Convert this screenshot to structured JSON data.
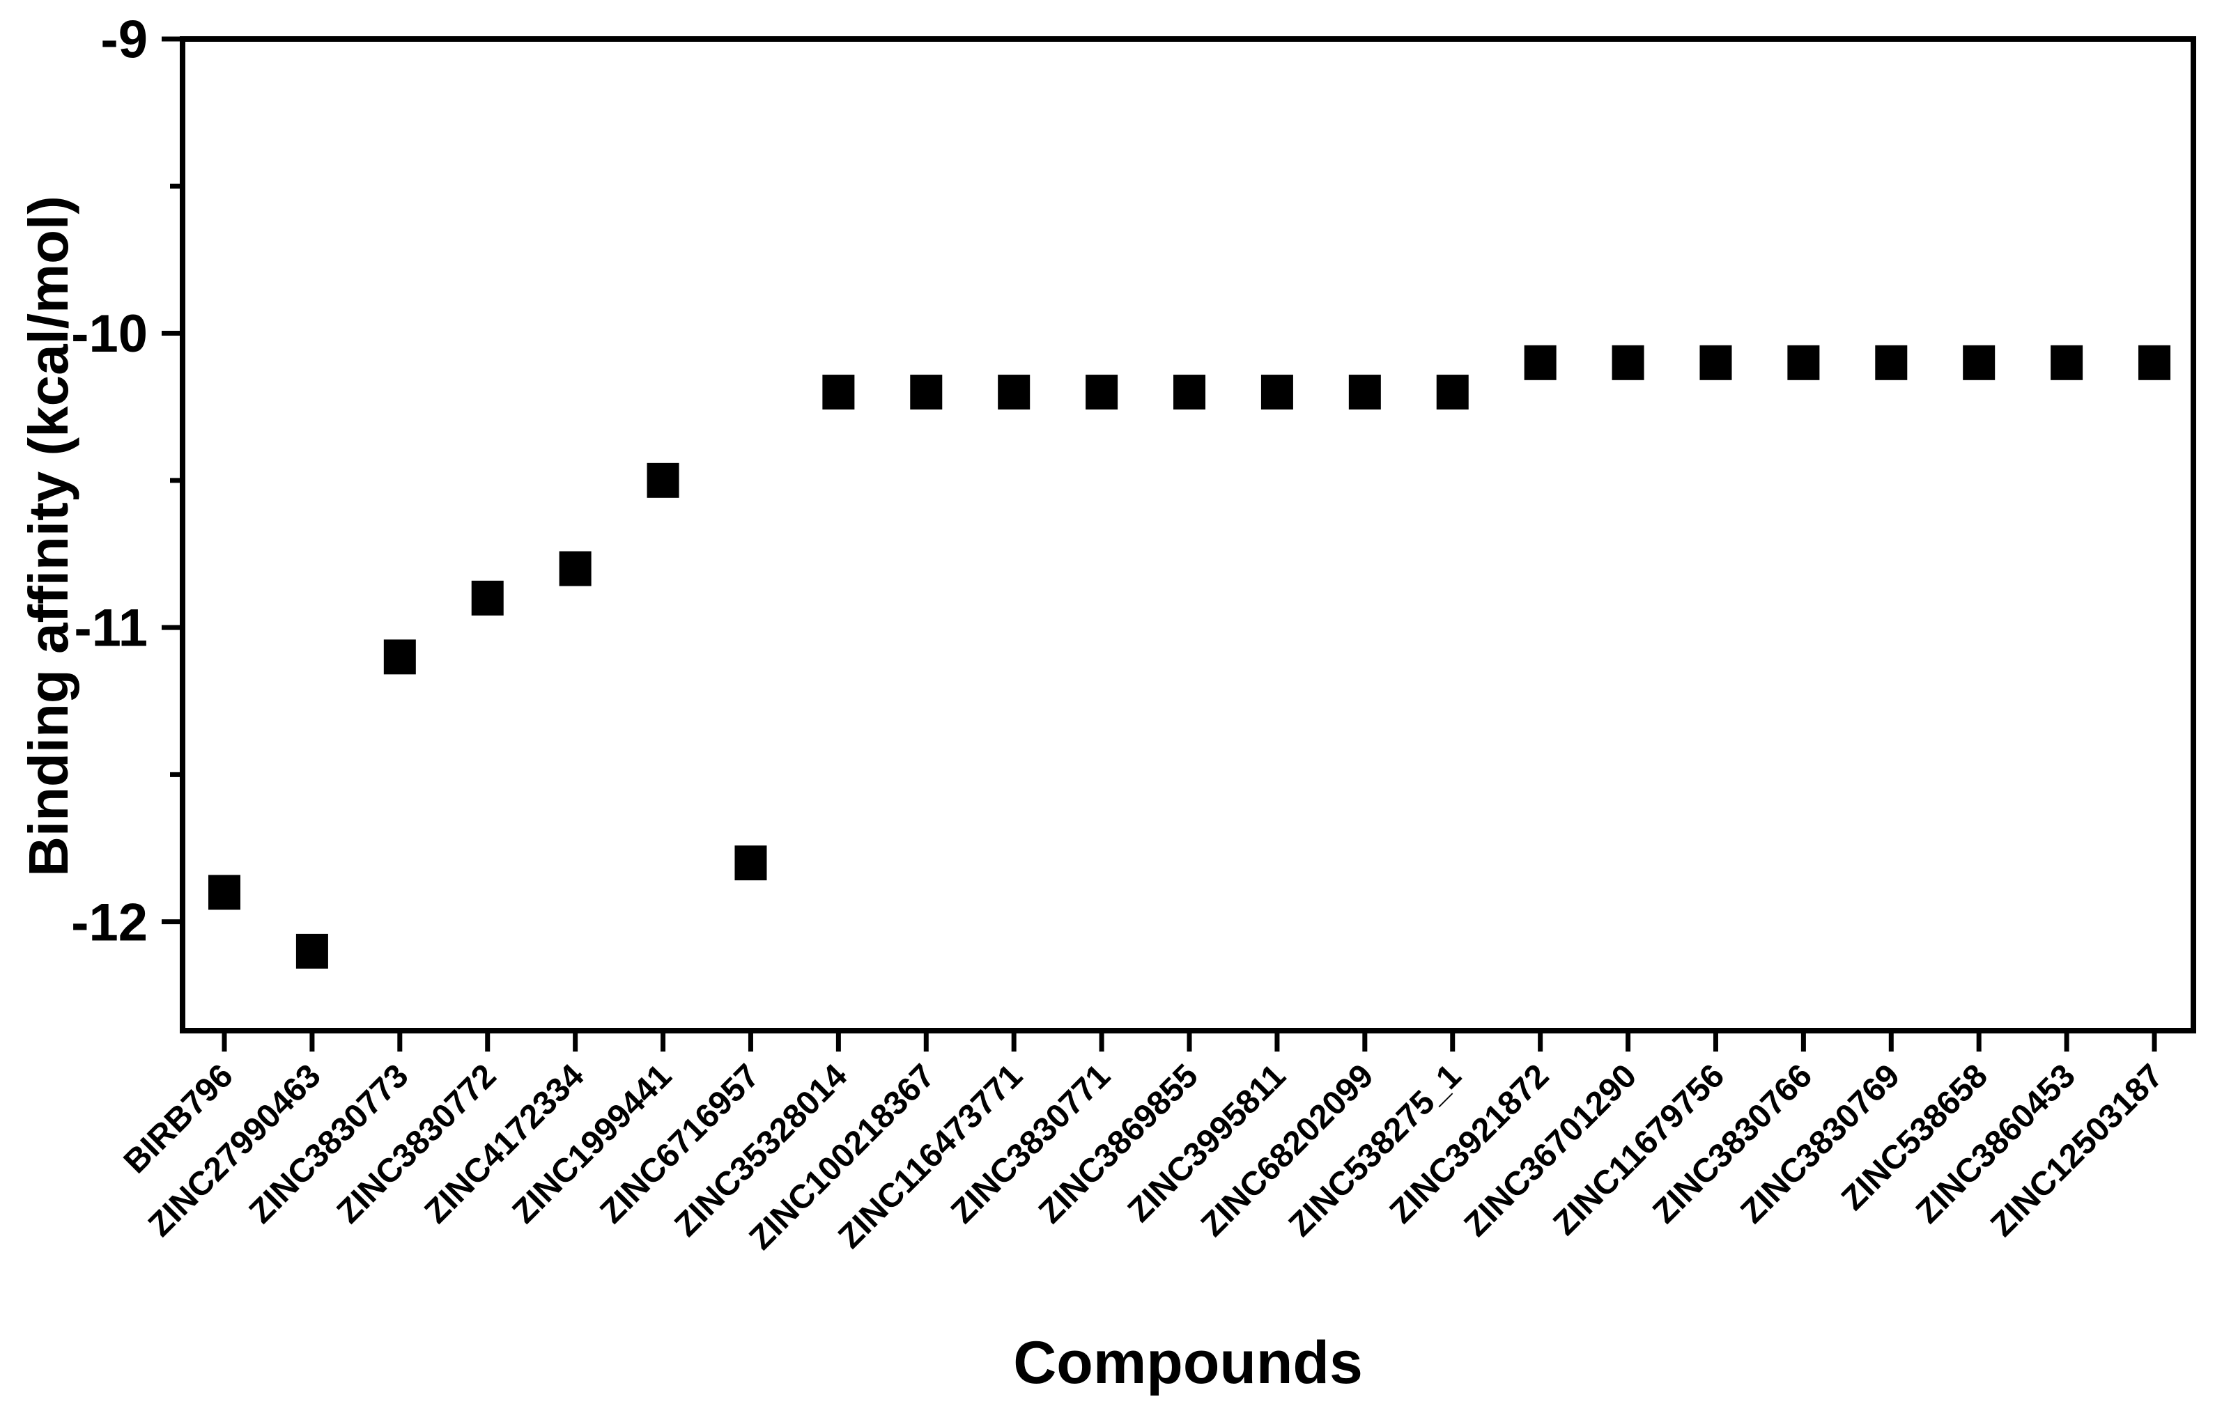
{
  "figure": {
    "background": "#ffffff",
    "ink_color": "#000000"
  },
  "chart_data": {
    "type": "scatter",
    "title": "",
    "xlabel": "Compounds",
    "ylabel": "Binding affinity (kcal/mol)",
    "categories": [
      "BIRB796",
      "ZINC27990463",
      "ZINC3830773",
      "ZINC3830772",
      "ZINC4172334",
      "ZINC1999441",
      "ZINC6716957",
      "ZINC35328014",
      "ZINC100218367",
      "ZINC116473771",
      "ZINC3830771",
      "ZINC3869855",
      "ZINC3995811",
      "ZINC68202099",
      "ZINC538275_1",
      "ZINC3921872",
      "ZINC36701290",
      "ZINC11679756",
      "ZINC3830766",
      "ZINC3830769",
      "ZINC538658",
      "ZINC3860453",
      "ZINC12503187"
    ],
    "values": [
      -11.9,
      -12.1,
      -11.1,
      -10.9,
      -10.8,
      -10.5,
      -11.8,
      -10.2,
      -10.2,
      -10.2,
      -10.2,
      -10.2,
      -10.2,
      -10.2,
      -10.2,
      -10.1,
      -10.1,
      -10.1,
      -10.1,
      -10.1,
      -10.1,
      -10.1,
      -10.1
    ],
    "ylim": [
      -12.37,
      -9
    ],
    "yticks_major": [
      -9,
      -10,
      -11,
      -12
    ],
    "ytick_labels": [
      "-9",
      "-10",
      "-11",
      "-12"
    ],
    "yticks_minor": [
      -9.5,
      -10.5,
      -11.5
    ],
    "marker": {
      "shape": "square",
      "color": "#000000"
    },
    "x_tick_label_rotation_deg": 45,
    "grid": "off",
    "legend": "none",
    "frame": "box"
  }
}
